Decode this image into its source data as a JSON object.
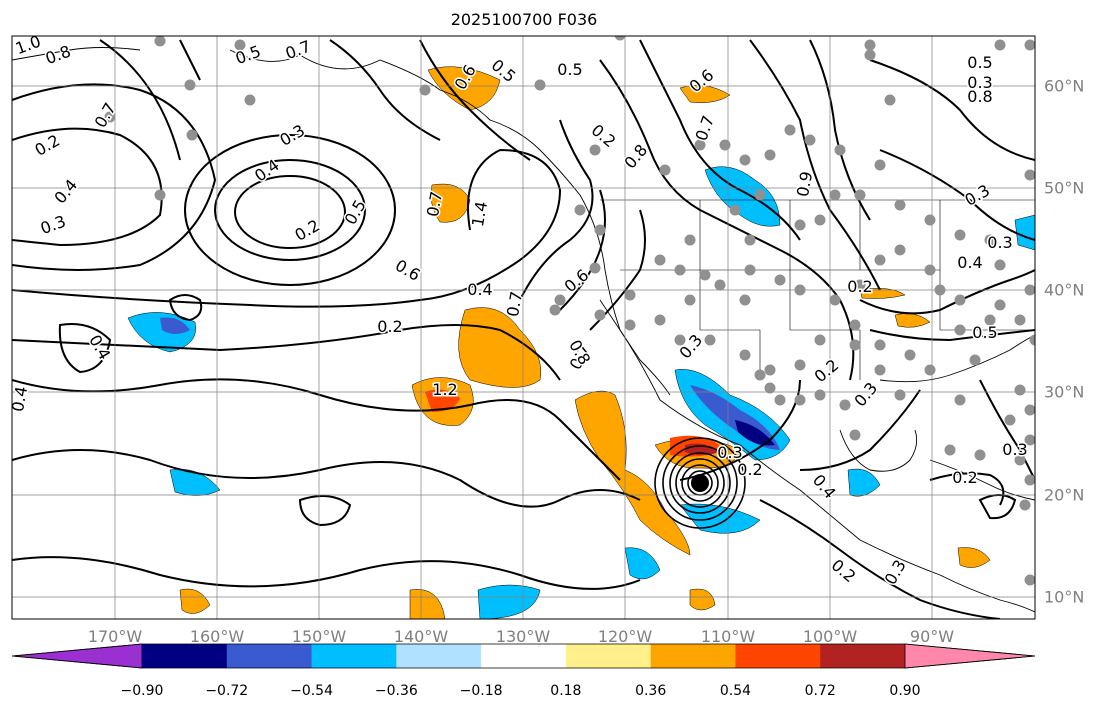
{
  "title": "2025100700 F036",
  "longitude_labels": [
    "170°W",
    "160°W",
    "150°W",
    "140°W",
    "130°W",
    "120°W",
    "110°W",
    "100°W",
    "90°W"
  ],
  "latitude_labels": [
    "60°N",
    "50°N",
    "40°N",
    "30°N",
    "20°N",
    "10°N"
  ],
  "colorbar": {
    "ticks": [
      "−0.90",
      "−0.72",
      "−0.54",
      "−0.36",
      "−0.18",
      "0.18",
      "0.36",
      "0.54",
      "0.72",
      "0.90"
    ],
    "colors": [
      "#9b30d0",
      "#000080",
      "#3a5bd0",
      "#00bfff",
      "#b0e2ff",
      "#ffffff",
      "#fff08a",
      "#ffa500",
      "#ff4500",
      "#b22222",
      "#ff88aa"
    ]
  },
  "contour_labels": [
    "1.0",
    "0.8",
    "0.7",
    "0.2",
    "0.3",
    "0.4",
    "0.5",
    "0.7",
    "0.3",
    "0.4",
    "0.2",
    "0.5",
    "0.6",
    "0.4",
    "0.2",
    "1.2",
    "1.4",
    "0.7",
    "0.6",
    "0.5",
    "0.3",
    "0.8",
    "0.7",
    "0.5",
    "0.6",
    "0.5",
    "0.7",
    "0.6",
    "0.7",
    "0.3",
    "0.4",
    "0.4",
    "0.8",
    "0.9",
    "0.3",
    "0.2",
    "0.2",
    "0.3",
    "0.2",
    "0.5",
    "0.3",
    "0.4",
    "0.2",
    "0.3",
    "0.4",
    "0.3",
    "0.2",
    "0.8",
    "0.3",
    "0.2"
  ],
  "colors": {
    "contour": "#000000",
    "grid": "#808080",
    "station_dot": "#909090",
    "axis_label": "#808080"
  }
}
